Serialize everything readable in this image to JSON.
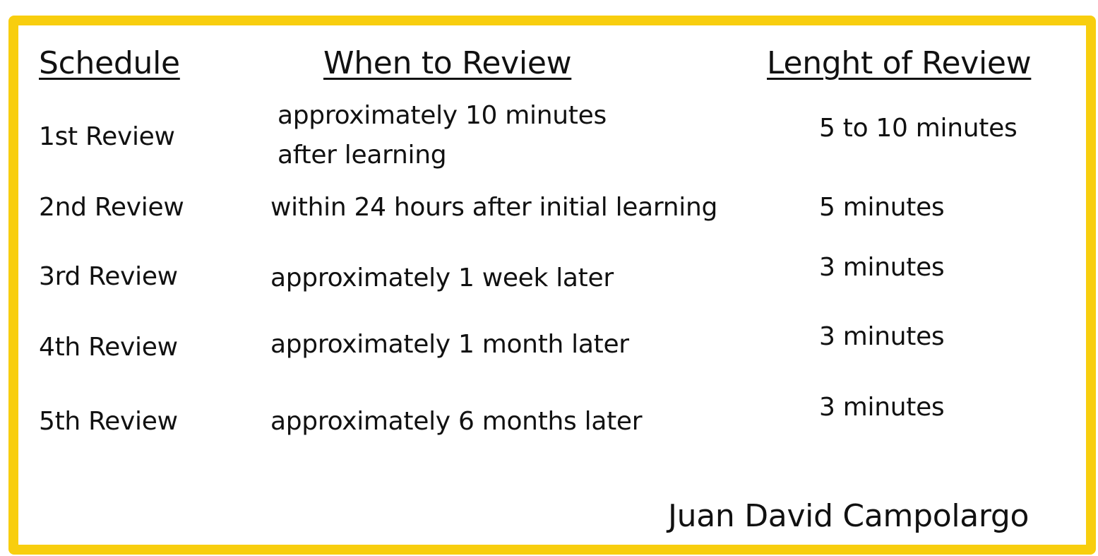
{
  "headers": {
    "schedule": "Schedule",
    "when": "When to Review",
    "length": "Lenght of Review"
  },
  "rows": [
    {
      "schedule": "1st Review",
      "when_line1": "approximately 10 minutes",
      "when_line2": "after learning",
      "length": "5 to 10 minutes"
    },
    {
      "schedule": "2nd Review",
      "when": "within 24 hours after initial learning",
      "length": "5 minutes"
    },
    {
      "schedule": "3rd Review",
      "when": "approximately 1 week later",
      "length": "3 minutes"
    },
    {
      "schedule": "4th Review",
      "when": "approximately 1 month later",
      "length": "3 minutes"
    },
    {
      "schedule": "5th Review",
      "when": "approximately 6 months later",
      "length": "3 minutes"
    }
  ],
  "author": "Juan David Campolargo",
  "colors": {
    "border": "#F8CE0E",
    "text": "#111111",
    "background": "#FFFFFF"
  }
}
